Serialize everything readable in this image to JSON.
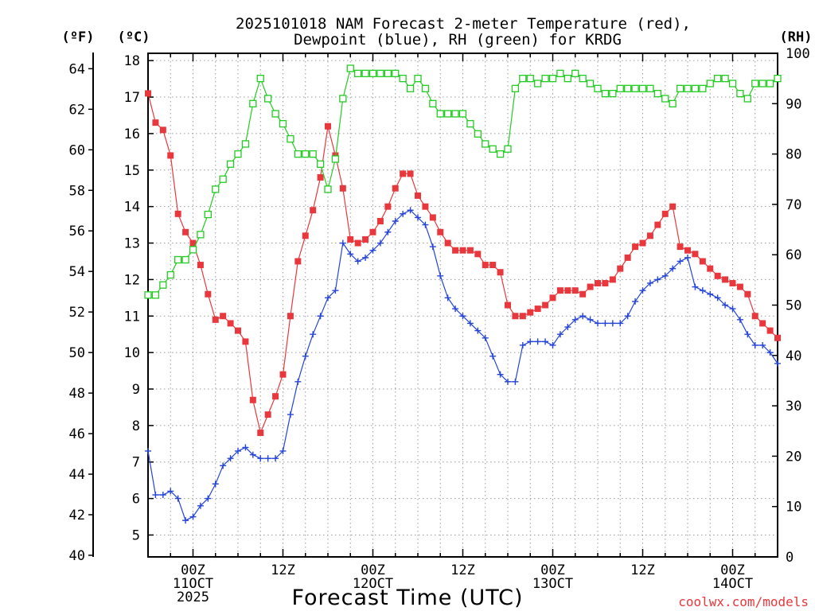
{
  "chart_data": {
    "type": "line",
    "title": [
      "2025101018 NAM Forecast 2-meter Temperature (red),",
      "Dewpoint (blue), RH (green) for KRDG"
    ],
    "xlabel": "Forecast Time (UTC)",
    "credit": "coolwx.com/models",
    "unit_labels": {
      "left_outer": "(ºF)",
      "left_inner": "(ºC)",
      "right": "(RH)"
    },
    "celsius_axis": {
      "min": 4.4,
      "max": 18.2,
      "ticks": [
        5,
        6,
        7,
        8,
        9,
        10,
        11,
        12,
        13,
        14,
        15,
        16,
        17,
        18
      ]
    },
    "fahrenheit_axis": {
      "min": 40,
      "max": 64.8,
      "ticks": [
        40,
        42,
        44,
        46,
        48,
        50,
        52,
        54,
        56,
        58,
        60,
        62,
        64
      ]
    },
    "rh_axis": {
      "min": 0,
      "max": 100,
      "ticks": [
        0,
        10,
        20,
        30,
        40,
        50,
        60,
        70,
        80,
        90,
        100
      ]
    },
    "x_range_hours": [
      18,
      102
    ],
    "x_ticks": [
      {
        "hour": 24,
        "labels": [
          "00Z",
          "11OCT",
          "2025"
        ]
      },
      {
        "hour": 36,
        "labels": [
          "12Z"
        ]
      },
      {
        "hour": 48,
        "labels": [
          "00Z",
          "12OCT"
        ]
      },
      {
        "hour": 60,
        "labels": [
          "12Z"
        ]
      },
      {
        "hour": 72,
        "labels": [
          "00Z",
          "13OCT"
        ]
      },
      {
        "hour": 84,
        "labels": [
          "12Z"
        ]
      },
      {
        "hour": 96,
        "labels": [
          "00Z",
          "14OCT"
        ]
      }
    ],
    "grid": true,
    "colors": {
      "temperature": "#e8383d",
      "dewpoint": "#2545d8",
      "rh": "#22cc22",
      "credit": "#e8383d"
    },
    "series": [
      {
        "name": "Temperature",
        "unit": "C",
        "marker": "filled-square",
        "points": [
          [
            18,
            17.1
          ],
          [
            19,
            16.3
          ],
          [
            20,
            16.1
          ],
          [
            21,
            15.4
          ],
          [
            22,
            13.8
          ],
          [
            23,
            13.3
          ],
          [
            24,
            13.0
          ],
          [
            25,
            12.4
          ],
          [
            26,
            11.6
          ],
          [
            27,
            10.9
          ],
          [
            28,
            11.0
          ],
          [
            29,
            10.8
          ],
          [
            30,
            10.6
          ],
          [
            31,
            10.3
          ],
          [
            32,
            8.7
          ],
          [
            33,
            7.8
          ],
          [
            34,
            8.3
          ],
          [
            35,
            8.8
          ],
          [
            36,
            9.4
          ],
          [
            37,
            11.0
          ],
          [
            38,
            12.5
          ],
          [
            39,
            13.2
          ],
          [
            40,
            13.9
          ],
          [
            41,
            14.8
          ],
          [
            42,
            16.2
          ],
          [
            43,
            15.4
          ],
          [
            44,
            14.5
          ],
          [
            45,
            13.1
          ],
          [
            46,
            13.0
          ],
          [
            47,
            13.1
          ],
          [
            48,
            13.3
          ],
          [
            49,
            13.6
          ],
          [
            50,
            14.0
          ],
          [
            51,
            14.5
          ],
          [
            52,
            14.9
          ],
          [
            53,
            14.9
          ],
          [
            54,
            14.3
          ],
          [
            55,
            14.0
          ],
          [
            56,
            13.7
          ],
          [
            57,
            13.3
          ],
          [
            58,
            13.0
          ],
          [
            59,
            12.8
          ],
          [
            60,
            12.8
          ],
          [
            61,
            12.8
          ],
          [
            62,
            12.7
          ],
          [
            63,
            12.4
          ],
          [
            64,
            12.4
          ],
          [
            65,
            12.2
          ],
          [
            66,
            11.3
          ],
          [
            67,
            11.0
          ],
          [
            68,
            11.0
          ],
          [
            69,
            11.1
          ],
          [
            70,
            11.2
          ],
          [
            71,
            11.3
          ],
          [
            72,
            11.5
          ],
          [
            73,
            11.7
          ],
          [
            74,
            11.7
          ],
          [
            75,
            11.7
          ],
          [
            76,
            11.6
          ],
          [
            77,
            11.8
          ],
          [
            78,
            11.9
          ],
          [
            79,
            11.9
          ],
          [
            80,
            12.0
          ],
          [
            81,
            12.3
          ],
          [
            82,
            12.6
          ],
          [
            83,
            12.9
          ],
          [
            84,
            13.0
          ],
          [
            85,
            13.2
          ],
          [
            86,
            13.5
          ],
          [
            87,
            13.8
          ],
          [
            88,
            14.0
          ],
          [
            89,
            12.9
          ],
          [
            90,
            12.8
          ],
          [
            91,
            12.7
          ],
          [
            92,
            12.5
          ],
          [
            93,
            12.3
          ],
          [
            94,
            12.1
          ],
          [
            95,
            12.0
          ],
          [
            96,
            11.9
          ],
          [
            97,
            11.8
          ],
          [
            98,
            11.6
          ],
          [
            99,
            11.0
          ],
          [
            100,
            10.8
          ],
          [
            101,
            10.6
          ],
          [
            102,
            10.4
          ]
        ]
      },
      {
        "name": "Dewpoint",
        "unit": "C",
        "marker": "plus",
        "points": [
          [
            18,
            7.3
          ],
          [
            19,
            6.1
          ],
          [
            20,
            6.1
          ],
          [
            21,
            6.2
          ],
          [
            22,
            6.0
          ],
          [
            23,
            5.4
          ],
          [
            24,
            5.5
          ],
          [
            25,
            5.8
          ],
          [
            26,
            6.0
          ],
          [
            27,
            6.4
          ],
          [
            28,
            6.9
          ],
          [
            29,
            7.1
          ],
          [
            30,
            7.3
          ],
          [
            31,
            7.4
          ],
          [
            32,
            7.2
          ],
          [
            33,
            7.1
          ],
          [
            34,
            7.1
          ],
          [
            35,
            7.1
          ],
          [
            36,
            7.3
          ],
          [
            37,
            8.3
          ],
          [
            38,
            9.2
          ],
          [
            39,
            9.9
          ],
          [
            40,
            10.5
          ],
          [
            41,
            11.0
          ],
          [
            42,
            11.5
          ],
          [
            43,
            11.7
          ],
          [
            44,
            13.0
          ],
          [
            45,
            12.7
          ],
          [
            46,
            12.5
          ],
          [
            47,
            12.6
          ],
          [
            48,
            12.8
          ],
          [
            49,
            13.0
          ],
          [
            50,
            13.3
          ],
          [
            51,
            13.6
          ],
          [
            52,
            13.8
          ],
          [
            53,
            13.9
          ],
          [
            54,
            13.7
          ],
          [
            55,
            13.5
          ],
          [
            56,
            12.9
          ],
          [
            57,
            12.1
          ],
          [
            58,
            11.5
          ],
          [
            59,
            11.2
          ],
          [
            60,
            11.0
          ],
          [
            61,
            10.8
          ],
          [
            62,
            10.6
          ],
          [
            63,
            10.4
          ],
          [
            64,
            9.9
          ],
          [
            65,
            9.4
          ],
          [
            66,
            9.2
          ],
          [
            67,
            9.2
          ],
          [
            68,
            10.2
          ],
          [
            69,
            10.3
          ],
          [
            70,
            10.3
          ],
          [
            71,
            10.3
          ],
          [
            72,
            10.2
          ],
          [
            73,
            10.5
          ],
          [
            74,
            10.7
          ],
          [
            75,
            10.9
          ],
          [
            76,
            11.0
          ],
          [
            77,
            10.9
          ],
          [
            78,
            10.8
          ],
          [
            79,
            10.8
          ],
          [
            80,
            10.8
          ],
          [
            81,
            10.8
          ],
          [
            82,
            11.0
          ],
          [
            83,
            11.4
          ],
          [
            84,
            11.7
          ],
          [
            85,
            11.9
          ],
          [
            86,
            12.0
          ],
          [
            87,
            12.1
          ],
          [
            88,
            12.3
          ],
          [
            89,
            12.5
          ],
          [
            90,
            12.6
          ],
          [
            91,
            11.8
          ],
          [
            92,
            11.7
          ],
          [
            93,
            11.6
          ],
          [
            94,
            11.5
          ],
          [
            95,
            11.3
          ],
          [
            96,
            11.2
          ],
          [
            97,
            10.9
          ],
          [
            98,
            10.5
          ],
          [
            99,
            10.2
          ],
          [
            100,
            10.2
          ],
          [
            101,
            10.0
          ],
          [
            102,
            9.7
          ]
        ]
      },
      {
        "name": "RH",
        "unit": "%",
        "marker": "open-square",
        "points": [
          [
            18,
            52
          ],
          [
            19,
            52
          ],
          [
            20,
            54
          ],
          [
            21,
            56
          ],
          [
            22,
            59
          ],
          [
            23,
            59
          ],
          [
            24,
            61
          ],
          [
            25,
            64
          ],
          [
            26,
            68
          ],
          [
            27,
            73
          ],
          [
            28,
            75
          ],
          [
            29,
            78
          ],
          [
            30,
            80
          ],
          [
            31,
            82
          ],
          [
            32,
            90
          ],
          [
            33,
            95
          ],
          [
            34,
            91
          ],
          [
            35,
            88
          ],
          [
            36,
            86
          ],
          [
            37,
            83
          ],
          [
            38,
            80
          ],
          [
            39,
            80
          ],
          [
            40,
            80
          ],
          [
            41,
            78
          ],
          [
            42,
            73
          ],
          [
            43,
            79
          ],
          [
            44,
            91
          ],
          [
            45,
            97
          ],
          [
            46,
            96
          ],
          [
            47,
            96
          ],
          [
            48,
            96
          ],
          [
            49,
            96
          ],
          [
            50,
            96
          ],
          [
            51,
            96
          ],
          [
            52,
            95
          ],
          [
            53,
            93
          ],
          [
            54,
            95
          ],
          [
            55,
            93
          ],
          [
            56,
            90
          ],
          [
            57,
            88
          ],
          [
            58,
            88
          ],
          [
            59,
            88
          ],
          [
            60,
            88
          ],
          [
            61,
            86
          ],
          [
            62,
            84
          ],
          [
            63,
            82
          ],
          [
            64,
            81
          ],
          [
            65,
            80
          ],
          [
            66,
            81
          ],
          [
            67,
            93
          ],
          [
            68,
            95
          ],
          [
            69,
            95
          ],
          [
            70,
            94
          ],
          [
            71,
            95
          ],
          [
            72,
            95
          ],
          [
            73,
            96
          ],
          [
            74,
            95
          ],
          [
            75,
            96
          ],
          [
            76,
            95
          ],
          [
            77,
            94
          ],
          [
            78,
            93
          ],
          [
            79,
            92
          ],
          [
            80,
            92
          ],
          [
            81,
            93
          ],
          [
            82,
            93
          ],
          [
            83,
            93
          ],
          [
            84,
            93
          ],
          [
            85,
            93
          ],
          [
            86,
            92
          ],
          [
            87,
            91
          ],
          [
            88,
            90
          ],
          [
            89,
            93
          ],
          [
            90,
            93
          ],
          [
            91,
            93
          ],
          [
            92,
            93
          ],
          [
            93,
            94
          ],
          [
            94,
            95
          ],
          [
            95,
            95
          ],
          [
            96,
            94
          ],
          [
            97,
            92
          ],
          [
            98,
            91
          ],
          [
            99,
            94
          ],
          [
            100,
            94
          ],
          [
            101,
            94
          ],
          [
            102,
            95
          ]
        ]
      }
    ]
  }
}
